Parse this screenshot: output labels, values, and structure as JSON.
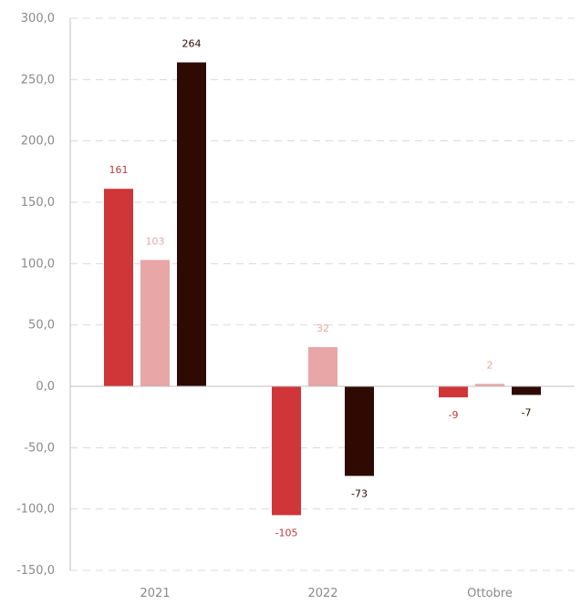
{
  "chart_data": {
    "type": "bar",
    "categories": [
      "2021",
      "2022",
      "Ottobre"
    ],
    "series": [
      {
        "color": "#d03538",
        "values": [
          161,
          -105,
          -9
        ],
        "labels": [
          "161",
          "-105",
          "-9"
        ]
      },
      {
        "color": "#e8a6a6",
        "values": [
          103,
          32,
          2
        ],
        "labels": [
          "103",
          "32",
          "2"
        ]
      },
      {
        "color": "#2e0a02",
        "values": [
          264,
          -73,
          -7
        ],
        "labels": [
          "264",
          "-73",
          "-7"
        ]
      }
    ],
    "ylim": [
      -150,
      300
    ],
    "yticks": [
      300,
      250,
      200,
      150,
      100,
      50,
      0,
      -50,
      -100,
      -150
    ],
    "ytick_labels": [
      "300,0",
      "250,0",
      "200,0",
      "150,0",
      "100,0",
      "50,0",
      "0,0",
      "-50,0",
      "-100,0",
      "-150,0"
    ],
    "grid": true,
    "legend": "none"
  }
}
